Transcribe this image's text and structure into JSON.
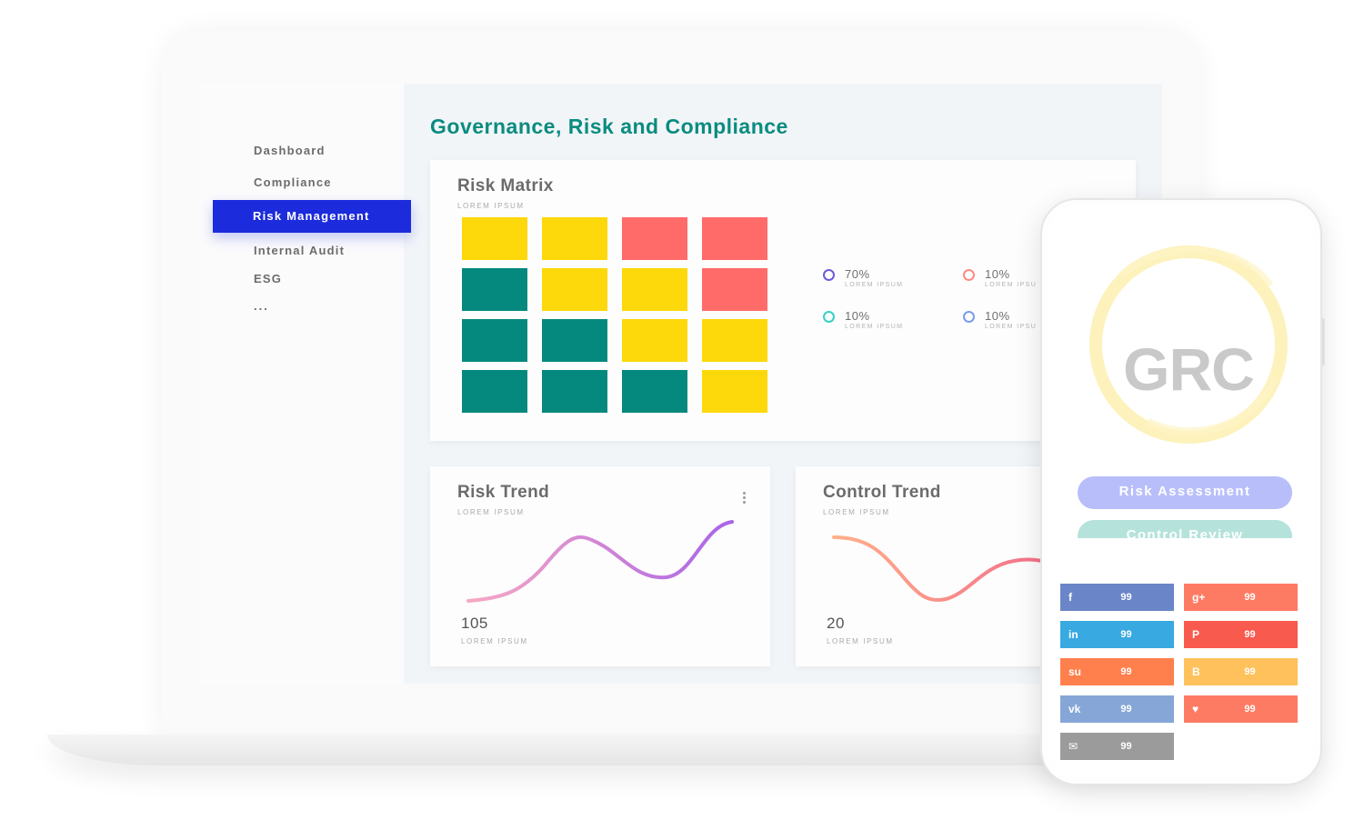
{
  "sidebar": {
    "items": [
      {
        "label": "Dashboard"
      },
      {
        "label": "Compliance"
      },
      {
        "label": "Risk Management",
        "active": true
      },
      {
        "label": "Internal Audit"
      },
      {
        "label": "ESG"
      },
      {
        "label": "..."
      }
    ]
  },
  "main": {
    "title": "Governance, Risk and Compliance",
    "risk_matrix": {
      "title": "Risk Matrix",
      "subtitle": "LOREM IPSUM",
      "grid": [
        [
          "yellow",
          "yellow",
          "red",
          "red"
        ],
        [
          "teal",
          "yellow",
          "yellow",
          "red"
        ],
        [
          "teal",
          "teal",
          "yellow",
          "yellow"
        ],
        [
          "teal",
          "teal",
          "teal",
          "yellow"
        ]
      ],
      "colors": {
        "yellow": "#fdd80a",
        "red": "#ff6b68",
        "teal": "#05897e"
      },
      "legend": [
        {
          "value": "70%",
          "label": "LOREM IPSUM",
          "color": "#6a5be0"
        },
        {
          "value": "10%",
          "label": "LOREM IPSU",
          "color": "#ff8a80"
        },
        {
          "value": "10%",
          "label": "LOREM IPSUM",
          "color": "#36d1c4"
        },
        {
          "value": "10%",
          "label": "LOREM IPSU",
          "color": "#7a9cf0"
        }
      ]
    },
    "risk_trend": {
      "title": "Risk Trend",
      "subtitle": "LOREM IPSUM",
      "value": "105",
      "value_label": "LOREM IPSUM",
      "gradient": [
        "#f7a8c4",
        "#a964e8"
      ]
    },
    "control_trend": {
      "title": "Control Trend",
      "subtitle": "LOREM IPSUM",
      "value": "20",
      "value_label": "LOREM IPSUM",
      "gradient": [
        "#ffb08a",
        "#f36c8a"
      ]
    }
  },
  "phone": {
    "logo_text": "GRC",
    "buttons": [
      {
        "label": "Risk Assessment",
        "color": "#b8befa"
      },
      {
        "label": "Control Review",
        "color": "#b5e3dc"
      }
    ],
    "share_buttons": [
      {
        "icon": "facebook-icon",
        "glyph": "f",
        "count": "99",
        "color": "#6b86c8"
      },
      {
        "icon": "google-plus-icon",
        "glyph": "g+",
        "count": "99",
        "color": "#fe7b63"
      },
      {
        "icon": "linkedin-icon",
        "glyph": "in",
        "count": "99",
        "color": "#39a9e1"
      },
      {
        "icon": "pinterest-icon",
        "glyph": "P",
        "count": "99",
        "color": "#f85a4e"
      },
      {
        "icon": "stumbleupon-icon",
        "glyph": "su",
        "count": "99",
        "color": "#ff7f4d"
      },
      {
        "icon": "blogger-icon",
        "glyph": "B",
        "count": "99",
        "color": "#fec15c"
      },
      {
        "icon": "vk-icon",
        "glyph": "vk",
        "count": "99",
        "color": "#85a6d6"
      },
      {
        "icon": "heart-icon",
        "glyph": "♥",
        "count": "99",
        "color": "#fe7b63"
      },
      {
        "icon": "email-icon",
        "glyph": "✉",
        "count": "99",
        "color": "#9b9b9b"
      }
    ]
  }
}
